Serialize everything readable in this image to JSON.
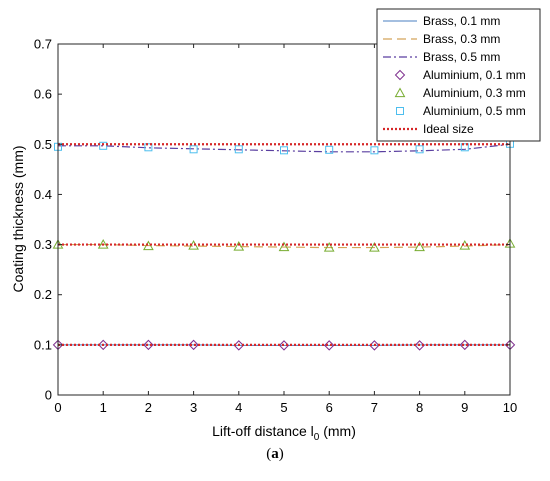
{
  "caption": {
    "open": "(",
    "letter": "a",
    "close": ")"
  },
  "chart_data": {
    "type": "line",
    "xlabel_main": "Lift-off distance l",
    "xlabel_sub": "0",
    "xlabel_unit": " (mm)",
    "ylabel": "Coating thickness (mm)",
    "xlim": [
      0,
      10
    ],
    "ylim": [
      0,
      0.7
    ],
    "xticks": [
      0,
      1,
      2,
      3,
      4,
      5,
      6,
      7,
      8,
      9,
      10
    ],
    "yticks": [
      0,
      0.1,
      0.2,
      0.3,
      0.4,
      0.5,
      0.6,
      0.7
    ],
    "ytick_labels": [
      "0",
      "0.1",
      "0.2",
      "0.3",
      "0.4",
      "0.5",
      "0.6",
      "0.7"
    ],
    "grid": false,
    "legend_position": "top-right",
    "x": [
      0,
      1,
      2,
      3,
      4,
      5,
      6,
      7,
      8,
      9,
      10
    ],
    "series": [
      {
        "name": "Brass, 0.1 mm",
        "style": "solid",
        "marker": "none",
        "color": "#4A7FC0",
        "values": [
          0.1,
          0.1,
          0.1,
          0.1,
          0.099,
          0.099,
          0.099,
          0.099,
          0.1,
          0.1,
          0.1
        ]
      },
      {
        "name": "Brass, 0.3 mm",
        "style": "dashed",
        "marker": "none",
        "color": "#D4A55A",
        "values": [
          0.3,
          0.3,
          0.298,
          0.297,
          0.296,
          0.295,
          0.294,
          0.294,
          0.295,
          0.297,
          0.3
        ]
      },
      {
        "name": "Brass, 0.5 mm",
        "style": "dashdot",
        "marker": "none",
        "color": "#5A3FA0",
        "values": [
          0.497,
          0.497,
          0.493,
          0.491,
          0.489,
          0.487,
          0.485,
          0.485,
          0.487,
          0.49,
          0.5
        ]
      },
      {
        "name": "Aluminium, 0.1 mm",
        "style": "none",
        "marker": "diamond",
        "color": "#7E2F8E",
        "values": [
          0.1,
          0.1,
          0.1,
          0.1,
          0.099,
          0.099,
          0.099,
          0.099,
          0.099,
          0.1,
          0.1
        ]
      },
      {
        "name": "Aluminium, 0.3 mm",
        "style": "none",
        "marker": "triangle",
        "color": "#77AC30",
        "values": [
          0.3,
          0.3,
          0.297,
          0.298,
          0.296,
          0.295,
          0.294,
          0.294,
          0.295,
          0.298,
          0.302
        ]
      },
      {
        "name": "Aluminium, 0.5 mm",
        "style": "none",
        "marker": "square",
        "color": "#4DBEEE",
        "values": [
          0.495,
          0.497,
          0.494,
          0.49,
          0.49,
          0.488,
          0.489,
          0.488,
          0.49,
          0.494,
          0.501
        ]
      },
      {
        "name": "Ideal size",
        "style": "dotted",
        "marker": "none",
        "color": "#D62728",
        "values": [
          0.1,
          0.1,
          0.1,
          0.1,
          0.1,
          0.1,
          0.1,
          0.1,
          0.1,
          0.1,
          0.1
        ],
        "extra_levels": [
          0.3,
          0.5
        ]
      }
    ]
  }
}
